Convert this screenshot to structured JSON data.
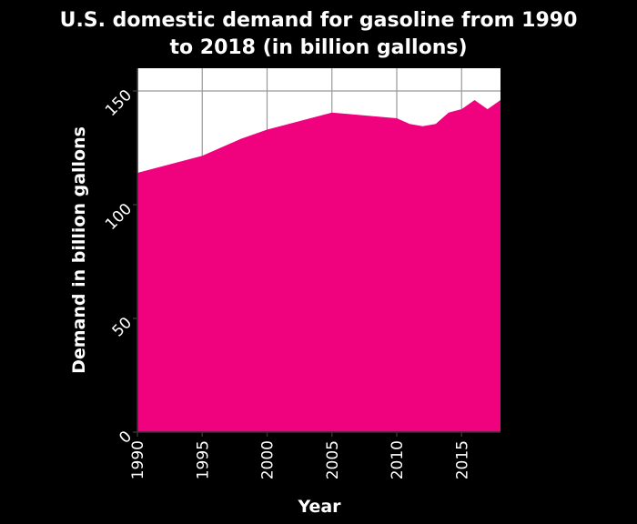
{
  "chart_data": {
    "type": "area",
    "title_lines": [
      "U.S. domestic demand for gasoline from 1990",
      "to 2018 (in billion gallons)"
    ],
    "xlabel": "Year",
    "ylabel": "Demand in billion gallons",
    "xlim": [
      1990,
      2018
    ],
    "ylim": [
      0,
      160
    ],
    "x_ticks": [
      1990,
      1995,
      2000,
      2005,
      2010,
      2015
    ],
    "y_ticks": [
      0,
      50,
      100,
      150
    ],
    "grid": true,
    "background": "#ffffff",
    "area_color": "#f0027f",
    "x": [
      1990,
      1991,
      1992,
      1993,
      1994,
      1995,
      1996,
      1997,
      1998,
      1999,
      2000,
      2001,
      2002,
      2003,
      2004,
      2005,
      2006,
      2007,
      2008,
      2009,
      2010,
      2011,
      2012,
      2013,
      2014,
      2015,
      2016,
      2017,
      2018
    ],
    "values": [
      114,
      115.5,
      117,
      118.5,
      120,
      121.5,
      124,
      126.5,
      129,
      131,
      133,
      134.5,
      136,
      137.5,
      139,
      140.5,
      140,
      139.5,
      139,
      138.5,
      138,
      135.5,
      134.5,
      135.5,
      140.5,
      142,
      146,
      142,
      146
    ]
  }
}
